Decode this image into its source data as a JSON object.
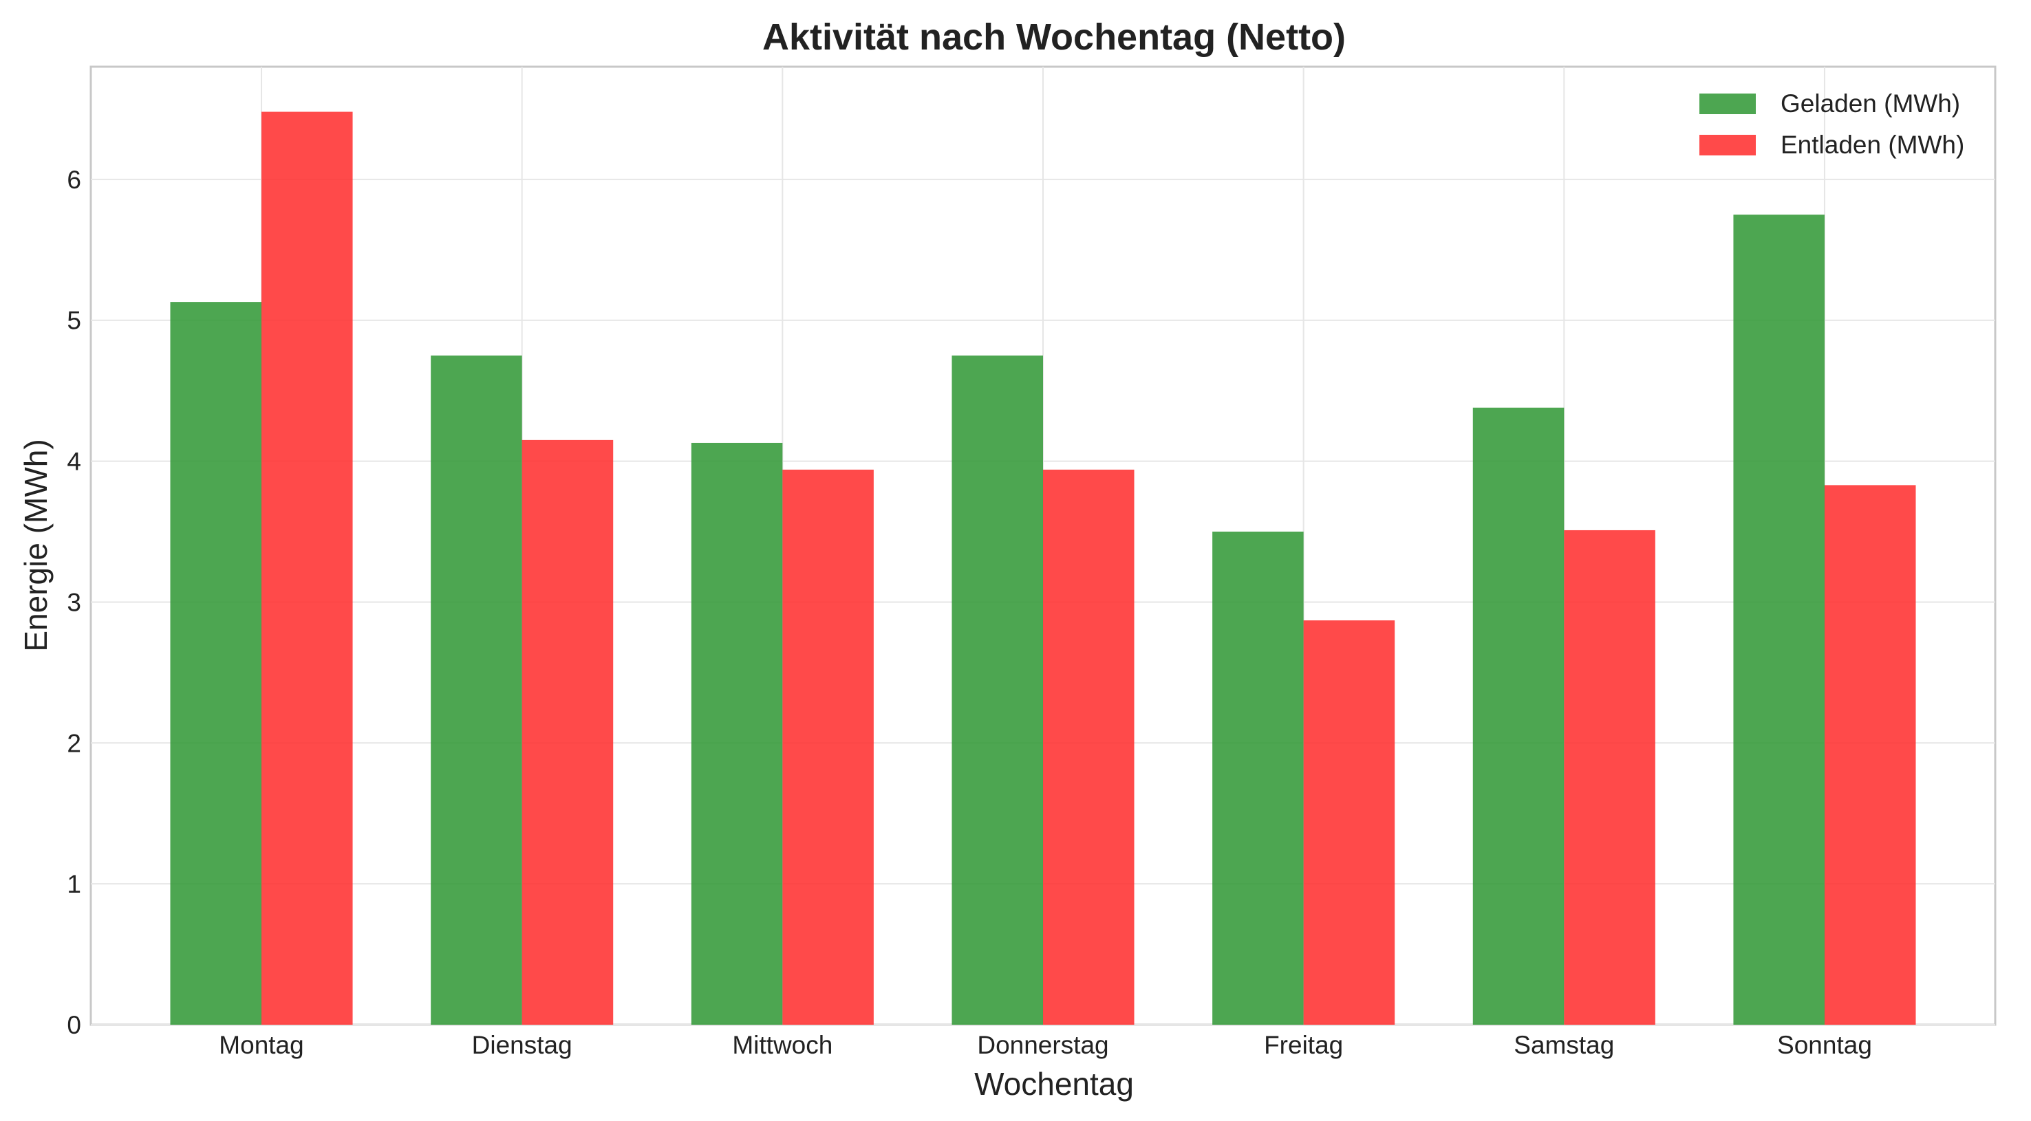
{
  "chart_data": {
    "type": "bar",
    "title": "Aktivität nach Wochentag (Netto)",
    "xlabel": "Wochentag",
    "ylabel": "Energie (MWh)",
    "categories": [
      "Montag",
      "Dienstag",
      "Mittwoch",
      "Donnerstag",
      "Freitag",
      "Samstag",
      "Sonntag"
    ],
    "series": [
      {
        "name": "Geladen (MWh)",
        "color": "#2e9632",
        "values": [
          5.13,
          4.75,
          4.13,
          4.75,
          3.5,
          4.38,
          5.75
        ]
      },
      {
        "name": "Entladen (MWh)",
        "color": "#ff2a2a",
        "values": [
          6.48,
          4.15,
          3.94,
          3.94,
          2.87,
          3.51,
          3.83
        ]
      }
    ],
    "ylim": [
      0,
      6.8
    ],
    "yticks": [
      "0",
      "1",
      "2",
      "3",
      "4",
      "5",
      "6"
    ],
    "grid": true,
    "legend_position": "top-right"
  }
}
